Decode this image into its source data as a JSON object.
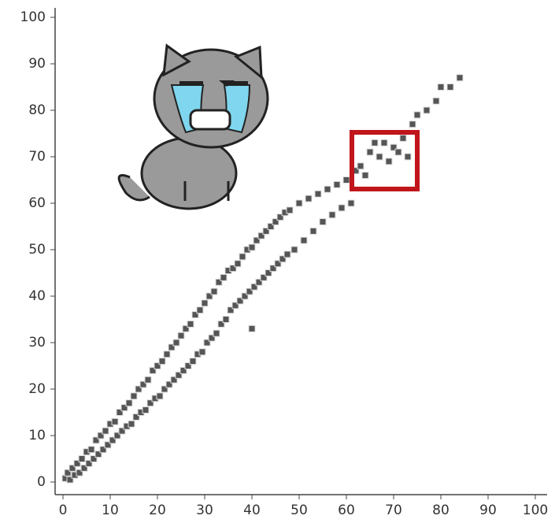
{
  "chart_data": {
    "type": "scatter",
    "x": [
      0.5,
      1,
      1.5,
      2,
      2.5,
      3,
      3.5,
      4,
      4.5,
      5,
      5.5,
      6,
      6.5,
      7,
      7.5,
      8,
      8.5,
      9,
      9.5,
      10,
      10.5,
      11,
      11.5,
      12,
      12.5,
      13,
      13.5,
      14,
      14.5,
      15,
      15.5,
      16,
      16.5,
      17,
      17.5,
      18,
      18.5,
      19,
      19.5,
      20,
      20.5,
      21,
      21.5,
      22,
      22.5,
      23,
      23.5,
      24,
      24.5,
      25,
      25.5,
      26,
      26.5,
      27,
      27.5,
      28,
      28.5,
      29,
      29.5,
      30,
      30.5,
      31,
      31.5,
      32,
      32.5,
      33,
      33.5,
      34,
      34.5,
      35,
      35.5,
      36,
      36.5,
      37,
      37.5,
      38,
      38.5,
      39,
      39.5,
      40,
      40.5,
      41,
      41.5,
      42,
      42.5,
      43,
      43.5,
      44,
      44.5,
      45,
      45.5,
      46,
      46.5,
      47,
      47.5,
      48,
      49,
      50,
      51,
      52,
      53,
      54,
      55,
      56,
      57,
      58,
      59,
      60,
      61,
      62,
      63,
      64,
      65,
      66,
      67,
      68,
      69,
      70,
      71,
      72,
      73,
      74,
      75,
      77,
      79,
      80,
      82,
      84,
      40
    ],
    "values": [
      0.8,
      2,
      0.5,
      3,
      1.5,
      4,
      2,
      5,
      3,
      6.5,
      4,
      7,
      5,
      9,
      6,
      10,
      7,
      11,
      8,
      12.5,
      9,
      13,
      10,
      15,
      11,
      16,
      12,
      17,
      12.5,
      18.5,
      14,
      20,
      15,
      21,
      15.5,
      22,
      17,
      24,
      18,
      25,
      18.5,
      26,
      20,
      27.5,
      21,
      29,
      22,
      30,
      23,
      31.5,
      24,
      33,
      25,
      34,
      26,
      36,
      27.5,
      37,
      28,
      38.5,
      30,
      40,
      31,
      41,
      32,
      43,
      34,
      44,
      35,
      45.5,
      37,
      46,
      38,
      47,
      39,
      48.5,
      40,
      50,
      41,
      50.5,
      42,
      52,
      43,
      53,
      44,
      54,
      45,
      55,
      46,
      56,
      47,
      57,
      48,
      58,
      49,
      58.5,
      50,
      60,
      52,
      61,
      54,
      62,
      56,
      63,
      57.5,
      64,
      59,
      65,
      60,
      67,
      68,
      66,
      71,
      73,
      70,
      73,
      69,
      72,
      71,
      74,
      70,
      77,
      79,
      80,
      82,
      85,
      85,
      87,
      33
    ],
    "color": "#555555",
    "xlim": [
      0,
      100
    ],
    "ylim": [
      0,
      100
    ],
    "xticks": [
      0,
      10,
      20,
      30,
      40,
      50,
      60,
      70,
      80,
      90,
      100
    ],
    "yticks": [
      0,
      10,
      20,
      30,
      40,
      50,
      60,
      70,
      80,
      90,
      100
    ]
  }
}
